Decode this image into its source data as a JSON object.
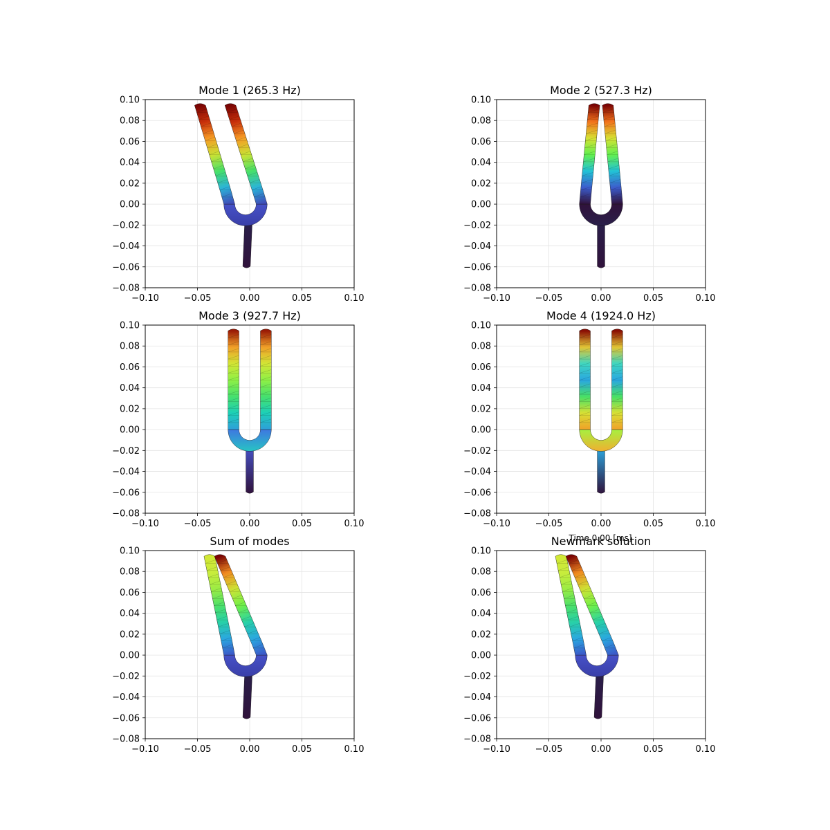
{
  "figure": {
    "suptitle": "Time 0.00 [ms]"
  },
  "chart_data": [
    {
      "type": "mesh-deformation",
      "title": "Mode 1 (265.3 Hz)",
      "xlim": [
        -0.1,
        0.1
      ],
      "ylim": [
        -0.08,
        0.1
      ],
      "xticks": [
        "−0.10",
        "−0.05",
        "0.00",
        "0.05",
        "0.10"
      ],
      "yticks": [
        "−0.08",
        "−0.06",
        "−0.04",
        "−0.02",
        "0.00",
        "0.02",
        "0.04",
        "0.06",
        "0.08",
        "0.10"
      ],
      "grid": true,
      "deformation": {
        "left_tip_dx": -0.032,
        "right_tip_dx": -0.034,
        "root_dx": -0.004,
        "handle_dx": -0.003
      },
      "colormap": "turbo"
    },
    {
      "type": "mesh-deformation",
      "title": "Mode 2 (527.3 Hz)",
      "xlim": [
        -0.1,
        0.1
      ],
      "ylim": [
        -0.08,
        0.1
      ],
      "xticks": [
        "−0.10",
        "−0.05",
        "0.00",
        "0.05",
        "0.10"
      ],
      "yticks": [
        "−0.08",
        "−0.06",
        "−0.04",
        "−0.02",
        "0.00",
        "0.02",
        "0.04",
        "0.06",
        "0.08",
        "0.10"
      ],
      "grid": true,
      "deformation": {
        "left_tip_dx": 0.009,
        "right_tip_dx": -0.009,
        "root_dx": 0.0,
        "handle_dx": 0.0
      },
      "colormap": "turbo"
    },
    {
      "type": "mesh-deformation",
      "title": "Mode 3 (927.7 Hz)",
      "xlim": [
        -0.1,
        0.1
      ],
      "ylim": [
        -0.08,
        0.1
      ],
      "xticks": [
        "−0.10",
        "−0.05",
        "0.00",
        "0.05",
        "0.10"
      ],
      "yticks": [
        "−0.08",
        "−0.06",
        "−0.04",
        "−0.02",
        "0.00",
        "0.02",
        "0.04",
        "0.06",
        "0.08",
        "0.10"
      ],
      "grid": true,
      "deformation": {
        "left_tip_dx": 0.0,
        "right_tip_dx": 0.0,
        "root_dx": 0.0,
        "handle_dx": 0.0
      },
      "colormap": "turbo"
    },
    {
      "type": "mesh-deformation",
      "title": "Mode 4 (1924.0 Hz)",
      "xlim": [
        -0.1,
        0.1
      ],
      "ylim": [
        -0.08,
        0.1
      ],
      "xticks": [
        "−0.10",
        "−0.05",
        "0.00",
        "0.05",
        "0.10"
      ],
      "yticks": [
        "−0.08",
        "−0.06",
        "−0.04",
        "−0.02",
        "0.00",
        "0.02",
        "0.04",
        "0.06",
        "0.08",
        "0.10"
      ],
      "grid": true,
      "deformation": {
        "left_tip_dx": 0.0,
        "right_tip_dx": 0.0,
        "root_dx": 0.0,
        "handle_dx": 0.0
      },
      "colormap": "turbo"
    },
    {
      "type": "mesh-deformation",
      "title": "Sum of modes",
      "xlim": [
        -0.1,
        0.1
      ],
      "ylim": [
        -0.08,
        0.1
      ],
      "xticks": [
        "−0.10",
        "−0.05",
        "0.00",
        "0.05",
        "0.10"
      ],
      "yticks": [
        "−0.08",
        "−0.06",
        "−0.04",
        "−0.02",
        "0.00",
        "0.02",
        "0.04",
        "0.06",
        "0.08",
        "0.10"
      ],
      "grid": true,
      "deformation": {
        "left_tip_dx": -0.023,
        "right_tip_dx": -0.044,
        "root_dx": -0.004,
        "handle_dx": -0.003
      },
      "colormap": "turbo"
    },
    {
      "type": "mesh-deformation",
      "title": "Newmark solution",
      "xlim": [
        -0.1,
        0.1
      ],
      "ylim": [
        -0.08,
        0.1
      ],
      "xticks": [
        "−0.10",
        "−0.05",
        "0.00",
        "0.05",
        "0.10"
      ],
      "yticks": [
        "−0.08",
        "−0.06",
        "−0.04",
        "−0.02",
        "0.00",
        "0.02",
        "0.04",
        "0.06",
        "0.08",
        "0.10"
      ],
      "grid": true,
      "deformation": {
        "left_tip_dx": -0.023,
        "right_tip_dx": -0.044,
        "root_dx": -0.004,
        "handle_dx": -0.003
      },
      "colormap": "turbo"
    }
  ]
}
